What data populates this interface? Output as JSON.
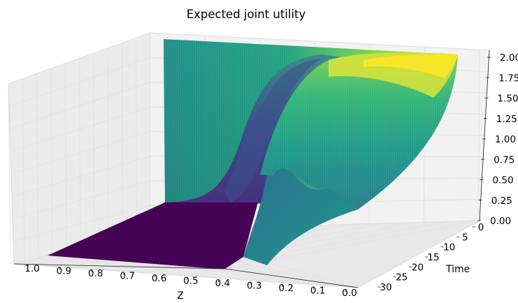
{
  "chart_data": {
    "type": "surface",
    "title": "Expected joint utility",
    "xlabel": "Z",
    "ylabel": "Time",
    "zlabel": "",
    "x_ticks": [
      "1.0",
      "0.9",
      "0.8",
      "0.7",
      "0.6",
      "0.5",
      "0.4",
      "0.3",
      "0.2",
      "0.1",
      "0.0"
    ],
    "y_ticks": [
      "0",
      "5",
      "10",
      "15",
      "20",
      "25",
      "30"
    ],
    "z_ticks": [
      "0.00",
      "0.25",
      "0.50",
      "0.75",
      "1.00",
      "1.25",
      "1.50",
      "1.75",
      "2.00"
    ],
    "xlim": [
      0,
      1
    ],
    "ylim": [
      0,
      32
    ],
    "zlim": [
      0,
      2
    ],
    "grid": true,
    "colormap": "viridis",
    "colormap_stops": [
      "#440154",
      "#3b528b",
      "#21918c",
      "#5ec962",
      "#fde725"
    ],
    "pane_colors": {
      "back": "#f2f2f2",
      "side": "#ebebeb",
      "floor": "#e8e8e8"
    },
    "surface_profile_z": [
      {
        "z": 0.0,
        "t0": 2.0,
        "t32": 2.0
      },
      {
        "z": 0.05,
        "t0": 1.98,
        "t32": 1.96
      },
      {
        "z": 0.1,
        "t0": 1.92,
        "t32": 1.76
      },
      {
        "z": 0.15,
        "t0": 1.86,
        "t32": 1.35
      },
      {
        "z": 0.2,
        "t0": 1.74,
        "t32": 0.9
      },
      {
        "z": 0.25,
        "t0": 1.64,
        "t32": 0.5
      },
      {
        "z": 0.3,
        "t0": 1.5,
        "t32": 0.3
      },
      {
        "z": 0.33,
        "t0": 1.4,
        "t32": 0.56
      },
      {
        "z": 0.36,
        "t0": 1.24,
        "t32": 0.38
      },
      {
        "z": 0.4,
        "t0": 0.93,
        "t32": 0.08
      },
      {
        "z": 0.45,
        "t0": 0.5,
        "t32": 0.0
      },
      {
        "z": 0.5,
        "t0": 0.2,
        "t32": 0.0
      },
      {
        "z": 0.55,
        "t0": 0.06,
        "t32": 0.0
      },
      {
        "z": 0.6,
        "t0": 0.01,
        "t32": 0.0
      },
      {
        "z": 1.0,
        "t0": 0.0,
        "t32": 0.0
      }
    ]
  }
}
